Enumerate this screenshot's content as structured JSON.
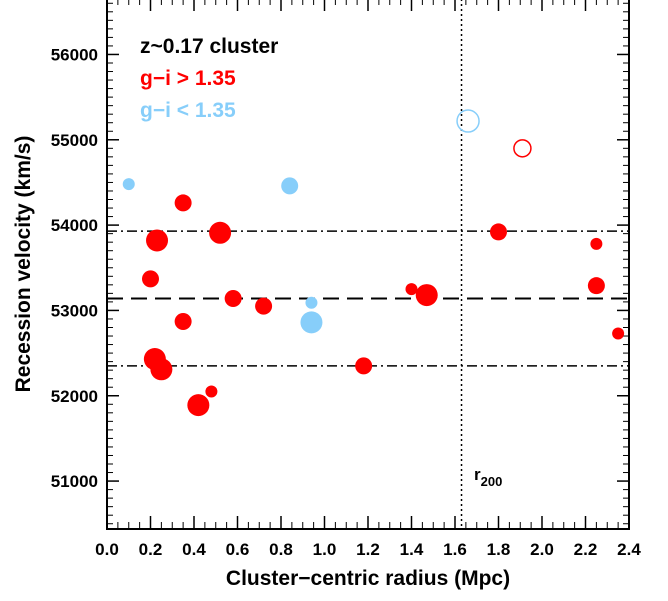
{
  "chart_data": {
    "type": "scatter",
    "xlabel": "Cluster−centric radius (Mpc)",
    "ylabel": "Recession velocity (km/s)",
    "xlim": [
      0.0,
      2.4
    ],
    "ylim": [
      50450,
      56650
    ],
    "x_ticks": [
      "0.0",
      "0.2",
      "0.4",
      "0.6",
      "0.8",
      "1.0",
      "1.2",
      "1.4",
      "1.6",
      "1.8",
      "2.0",
      "2.2",
      "2.4"
    ],
    "y_ticks": [
      "51000",
      "52000",
      "53000",
      "54000",
      "55000",
      "56000"
    ],
    "legend": {
      "position": "top-left",
      "entries": [
        {
          "text": "z~0.17 cluster",
          "color": "#000000"
        },
        {
          "text": "g−i > 1.35",
          "color": "#ff0000"
        },
        {
          "text": "g−i < 1.35",
          "color": "#87cefa"
        }
      ]
    },
    "reference_lines": {
      "mean_velocity": 53140,
      "upper_sigma": 53930,
      "lower_sigma": 52350,
      "r200": 1.63,
      "r200_label_base": "r",
      "r200_label_sub": "200"
    },
    "series": [
      {
        "color": "#ff0000",
        "points": [
          {
            "x": 0.2,
            "y": 53370,
            "size": 2
          },
          {
            "x": 0.23,
            "y": 53820,
            "size": 3
          },
          {
            "x": 0.22,
            "y": 52430,
            "size": 3
          },
          {
            "x": 0.25,
            "y": 52310,
            "size": 3
          },
          {
            "x": 0.35,
            "y": 54260,
            "size": 2
          },
          {
            "x": 0.35,
            "y": 52870,
            "size": 2
          },
          {
            "x": 0.42,
            "y": 51890,
            "size": 3
          },
          {
            "x": 0.48,
            "y": 52050,
            "size": 1
          },
          {
            "x": 0.52,
            "y": 53910,
            "size": 3
          },
          {
            "x": 0.58,
            "y": 53140,
            "size": 2
          },
          {
            "x": 0.72,
            "y": 53050,
            "size": 2
          },
          {
            "x": 1.18,
            "y": 52350,
            "size": 2
          },
          {
            "x": 1.4,
            "y": 53250,
            "size": 1
          },
          {
            "x": 1.47,
            "y": 53180,
            "size": 3
          },
          {
            "x": 1.8,
            "y": 53920,
            "size": 2
          },
          {
            "x": 2.25,
            "y": 53780,
            "size": 1
          },
          {
            "x": 2.25,
            "y": 53290,
            "size": 2
          },
          {
            "x": 2.35,
            "y": 52730,
            "size": 1
          },
          {
            "x": 1.91,
            "y": 54900,
            "size": 2,
            "open": true
          }
        ]
      },
      {
        "color": "#87cefa",
        "points": [
          {
            "x": 0.1,
            "y": 54480,
            "size": 1
          },
          {
            "x": 0.84,
            "y": 54460,
            "size": 2
          },
          {
            "x": 0.94,
            "y": 53090,
            "size": 1
          },
          {
            "x": 0.94,
            "y": 52860,
            "size": 3
          },
          {
            "x": 1.66,
            "y": 55220,
            "size": 3,
            "open": true
          }
        ]
      }
    ]
  }
}
